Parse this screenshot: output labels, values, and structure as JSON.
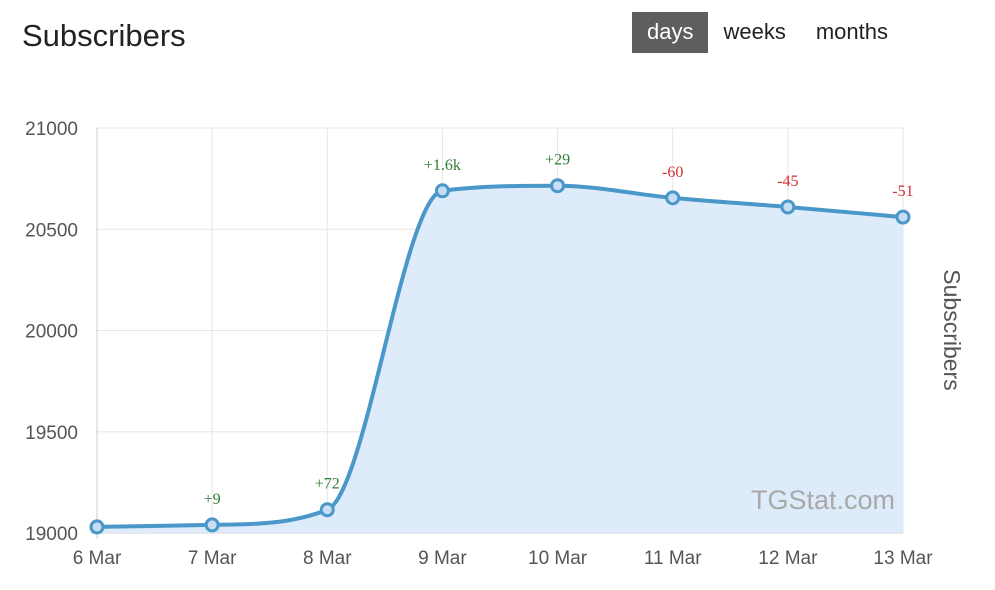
{
  "header": {
    "title": "Subscribers",
    "ranges": [
      {
        "label": "days",
        "active": true
      },
      {
        "label": "weeks",
        "active": false
      },
      {
        "label": "months",
        "active": false
      }
    ]
  },
  "chart_data": {
    "type": "area",
    "title": "Subscribers",
    "ylabel": "Subscribers",
    "xlabel": "",
    "x": [
      "6 Mar",
      "7 Mar",
      "8 Mar",
      "9 Mar",
      "10 Mar",
      "11 Mar",
      "12 Mar",
      "13 Mar"
    ],
    "series": [
      {
        "values": [
          19030,
          19040,
          19115,
          20690,
          20715,
          20655,
          20610,
          20560
        ],
        "data_labels": [
          "",
          "+9",
          "+72",
          "+1.6k",
          "+29",
          "-60",
          "-45",
          "-51"
        ]
      }
    ],
    "ylim": [
      19000,
      21000
    ],
    "yticks": [
      19000,
      19500,
      20000,
      20500,
      21000
    ],
    "grid": true,
    "watermark": "TGStat.com",
    "colors": {
      "line": "#4a98c9",
      "fill": "#deebfb",
      "point_fill": "#c9def3",
      "positive": "#2e7d32",
      "negative": "#d32f2f",
      "grid": "#e6e6e6",
      "axis": "#cccccc"
    }
  }
}
